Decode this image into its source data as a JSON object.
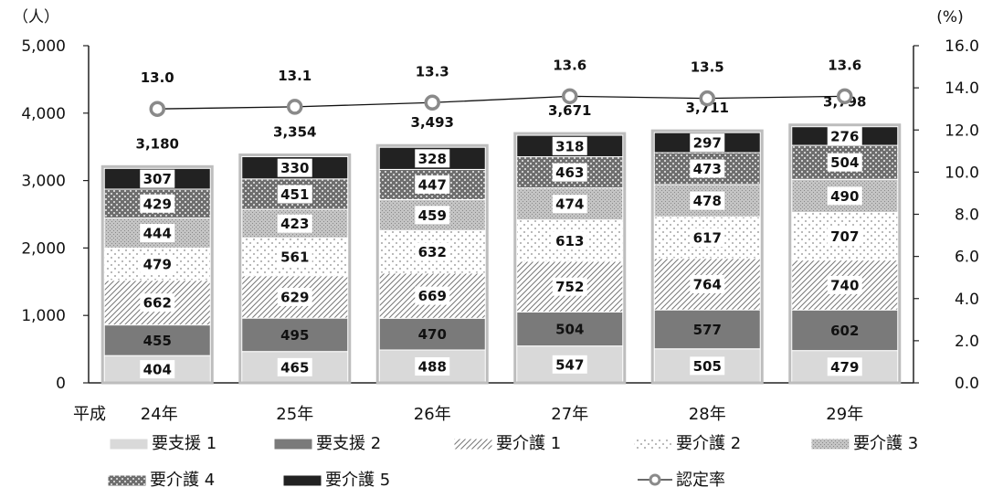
{
  "chart_data": {
    "type": "bar",
    "stacked": true,
    "left_unit": "（人）",
    "right_unit": "(%)",
    "category_prefix": "平成",
    "categories": [
      "24年",
      "25年",
      "26年",
      "27年",
      "28年",
      "29年"
    ],
    "series": [
      {
        "name": "要支援 1",
        "values": [
          404,
          465,
          488,
          547,
          505,
          479
        ],
        "pattern": "light",
        "label_color": "#111111"
      },
      {
        "name": "要支援 2",
        "values": [
          455,
          495,
          470,
          504,
          577,
          602
        ],
        "pattern": "dark",
        "label_color": "#ffffff"
      },
      {
        "name": "要介護 1",
        "values": [
          662,
          629,
          669,
          752,
          764,
          740
        ],
        "pattern": "hatch",
        "label_color": "#111111"
      },
      {
        "name": "要介護 2",
        "values": [
          479,
          561,
          632,
          613,
          617,
          707
        ],
        "pattern": "dots",
        "label_color": "#111111"
      },
      {
        "name": "要介護 3",
        "values": [
          444,
          423,
          459,
          474,
          478,
          490
        ],
        "pattern": "fine",
        "label_color": "#111111"
      },
      {
        "name": "要介護 4",
        "values": [
          429,
          451,
          447,
          463,
          473,
          504
        ],
        "pattern": "check",
        "label_color": "#111111"
      },
      {
        "name": "要介護 5",
        "values": [
          307,
          330,
          328,
          318,
          297,
          276
        ],
        "pattern": "black",
        "label_color": "#111111"
      }
    ],
    "totals": [
      "3,180",
      "3,354",
      "3,493",
      "3,671",
      "3,711",
      "3,798"
    ],
    "line_series": {
      "name": "認定率",
      "values": [
        13.0,
        13.1,
        13.3,
        13.6,
        13.5,
        13.6
      ],
      "labels": [
        "13.0",
        "13.1",
        "13.3",
        "13.6",
        "13.5",
        "13.6"
      ]
    },
    "y_left": {
      "min": 0,
      "max": 5000,
      "ticks": [
        0,
        1000,
        2000,
        3000,
        4000,
        5000
      ],
      "tick_labels": [
        "0",
        "1,000",
        "2,000",
        "3,000",
        "4,000",
        "5,000"
      ]
    },
    "y_right": {
      "min": 0,
      "max": 16,
      "ticks": [
        0,
        2,
        4,
        6,
        8,
        10,
        12,
        14,
        16
      ],
      "tick_labels": [
        "0.0",
        "2.0",
        "4.0",
        "6.0",
        "8.0",
        "10.0",
        "12.0",
        "14.0",
        "16.0"
      ]
    },
    "grid": false,
    "legend_position": "bottom"
  }
}
